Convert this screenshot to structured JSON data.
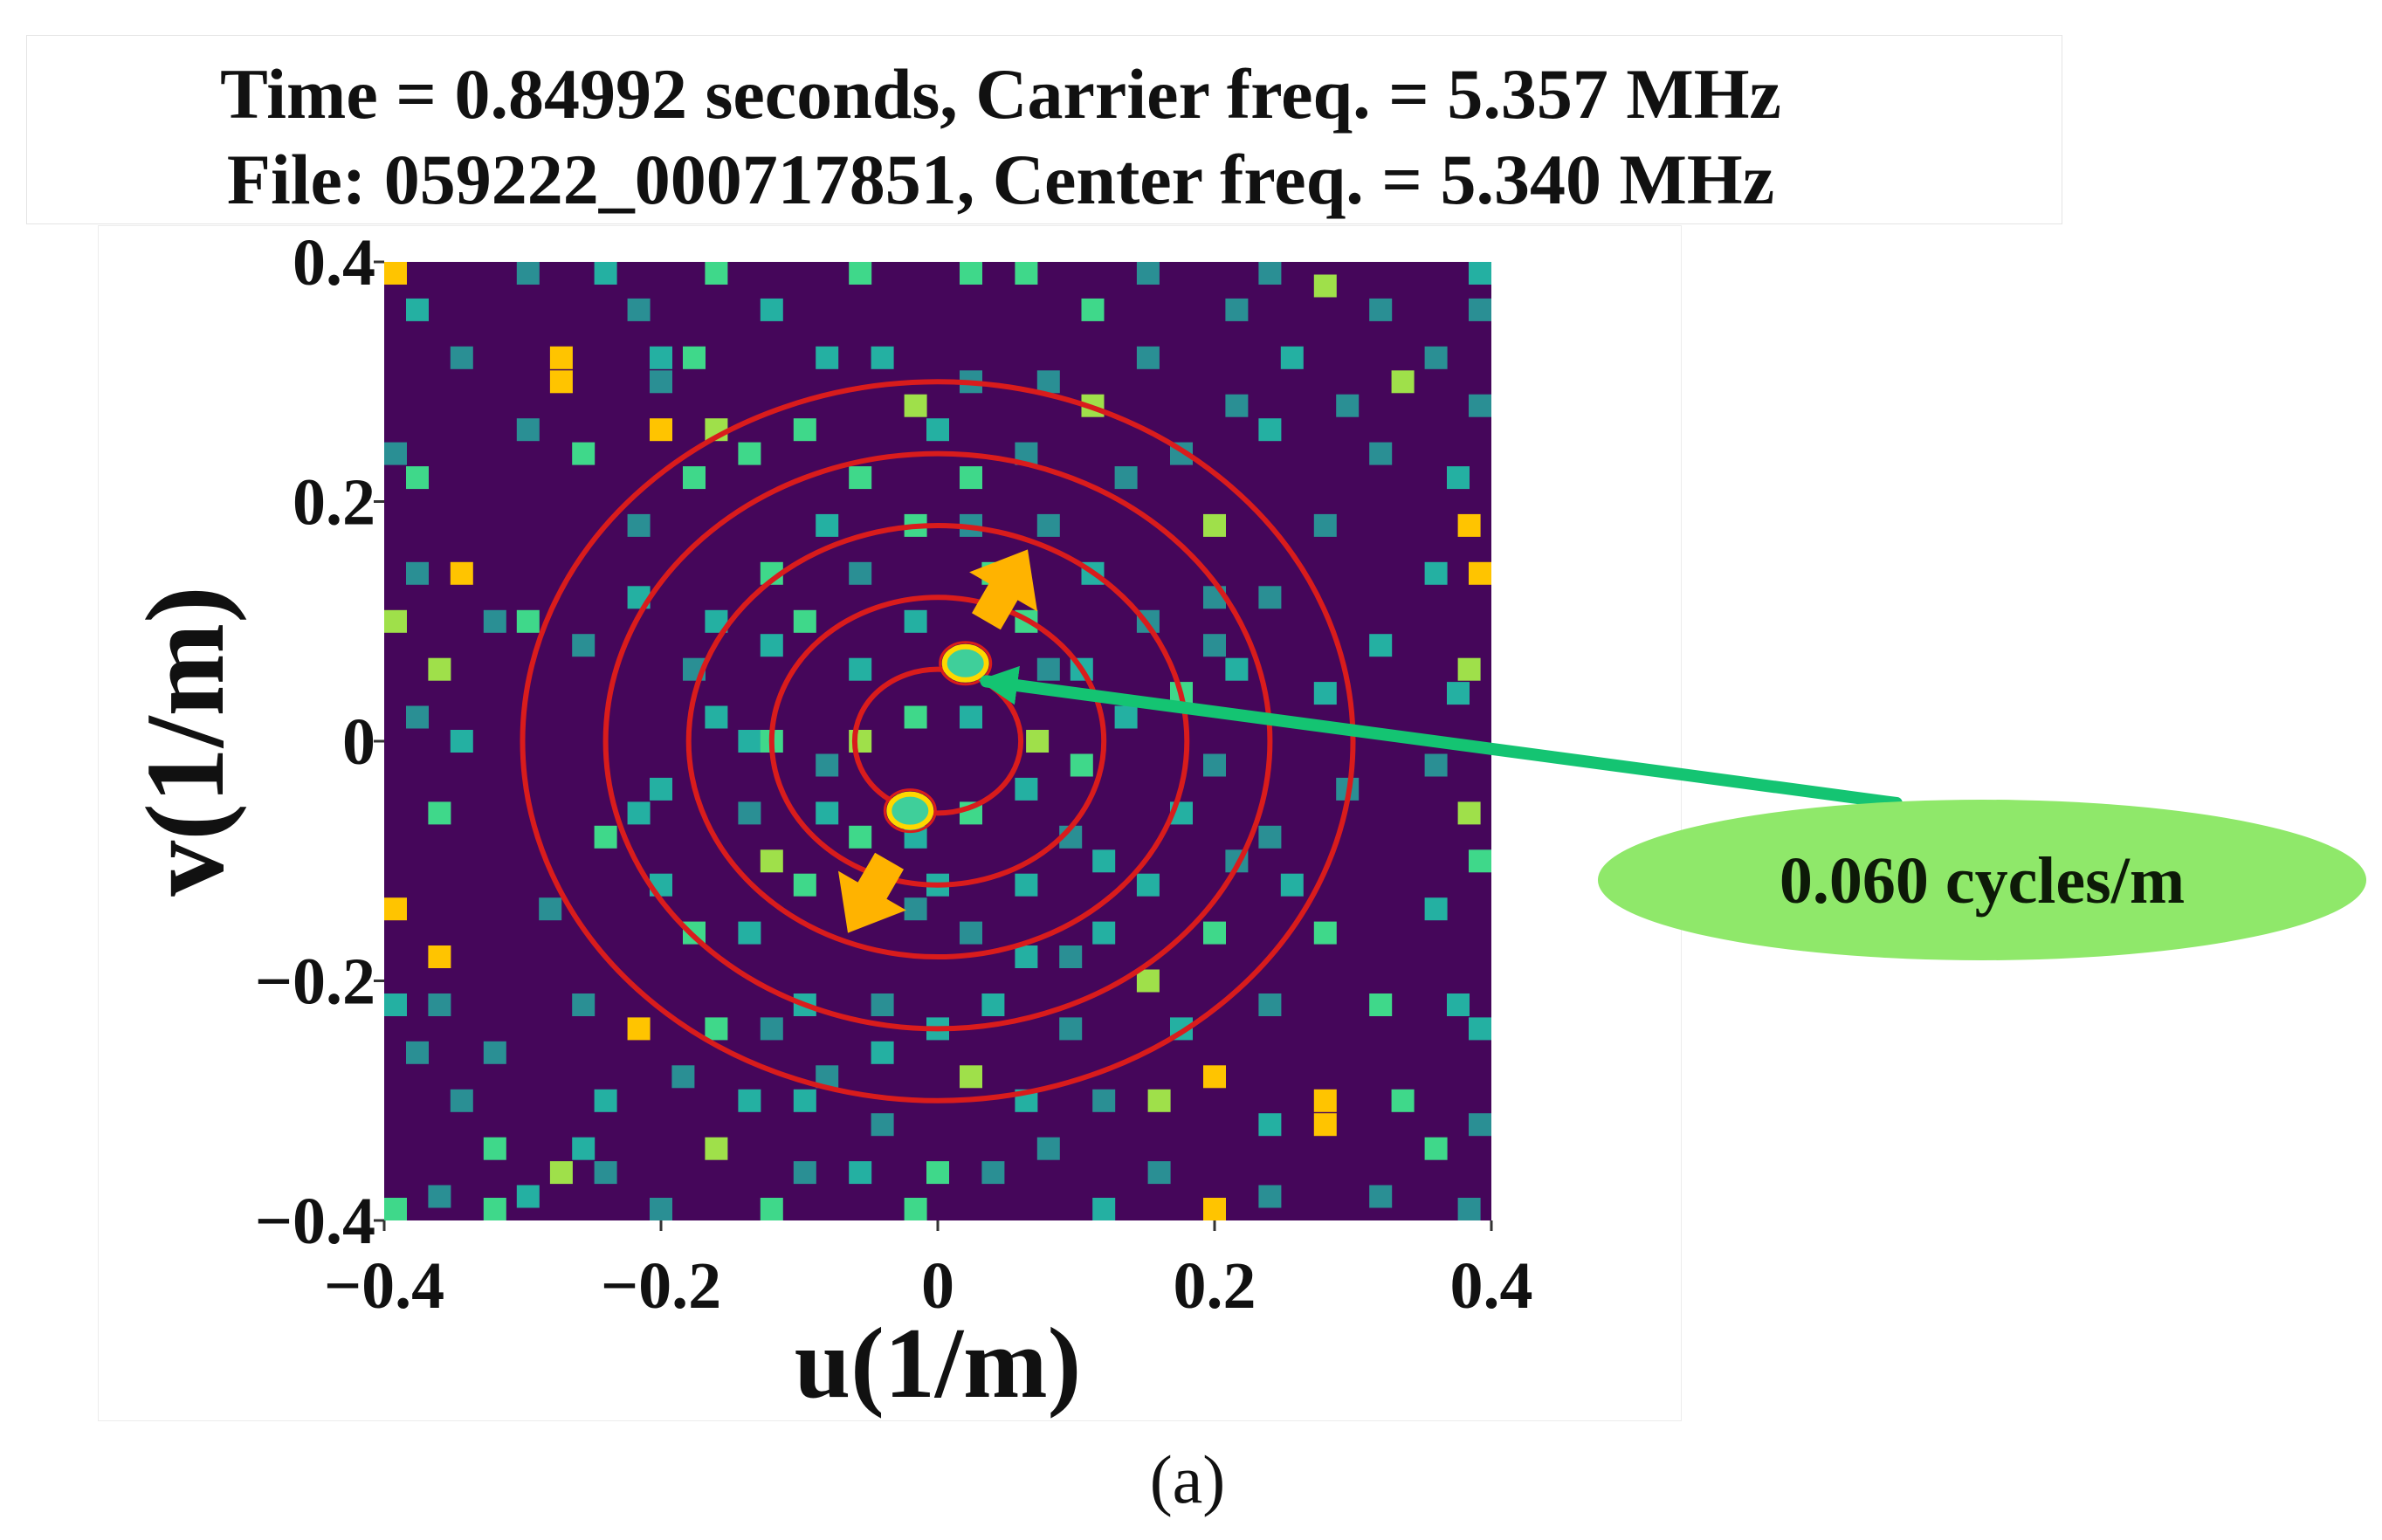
{
  "header": {
    "line1": "Time = 0.84992 seconds, Carrier freq. = 5.357 MHz",
    "line2": "File: 059222_000717851, Center freq. = 5.340 MHz"
  },
  "subfigure_label": "(a)",
  "chart_data": {
    "type": "heatmap",
    "title": "Time = 0.84992 seconds, Carrier freq. = 5.357 MHz / File: 059222_000717851, Center freq. = 5.340 MHz",
    "xlabel": "u(1/m)",
    "ylabel": "v(1/m)",
    "xlim": [
      -0.4,
      0.4
    ],
    "ylim": [
      -0.4,
      0.4
    ],
    "xticks": [
      -0.4,
      -0.2,
      0,
      0.2,
      0.4
    ],
    "yticks": [
      -0.4,
      -0.2,
      0,
      0.2,
      0.4
    ],
    "xtick_labels": [
      "−0.4",
      "−0.2",
      "0",
      "0.2",
      "0.4"
    ],
    "ytick_labels": [
      "−0.4",
      "−0.2",
      "0",
      "0.2",
      "0.4"
    ],
    "background_color": "#45065a",
    "palette": {
      "teal": "#2a8f94",
      "cyan": "#24b0a2",
      "green": "#3fd88a",
      "lime": "#9fe04a",
      "yellow": "#f0e020",
      "gold": "#ffc400"
    },
    "cells": [
      {
        "u": -0.392,
        "v": 0.4,
        "c": "gold"
      },
      {
        "u": -0.376,
        "v": 0.36,
        "c": "cyan"
      },
      {
        "u": -0.344,
        "v": 0.32,
        "c": "teal"
      },
      {
        "u": -0.4,
        "v": 0.24,
        "c": "teal"
      },
      {
        "u": -0.376,
        "v": 0.22,
        "c": "green"
      },
      {
        "u": -0.4,
        "v": 0.1,
        "c": "lime"
      },
      {
        "u": -0.376,
        "v": 0.14,
        "c": "teal"
      },
      {
        "u": -0.344,
        "v": 0.14,
        "c": "gold"
      },
      {
        "u": -0.36,
        "v": 0.06,
        "c": "lime"
      },
      {
        "u": -0.344,
        "v": 0.0,
        "c": "cyan"
      },
      {
        "u": -0.376,
        "v": 0.02,
        "c": "teal"
      },
      {
        "u": -0.32,
        "v": 0.1,
        "c": "teal"
      },
      {
        "u": -0.36,
        "v": -0.06,
        "c": "green"
      },
      {
        "u": -0.4,
        "v": -0.14,
        "c": "gold"
      },
      {
        "u": -0.36,
        "v": -0.18,
        "c": "gold"
      },
      {
        "u": -0.4,
        "v": -0.22,
        "c": "cyan"
      },
      {
        "u": -0.36,
        "v": -0.22,
        "c": "teal"
      },
      {
        "u": -0.344,
        "v": -0.3,
        "c": "teal"
      },
      {
        "u": -0.376,
        "v": -0.26,
        "c": "teal"
      },
      {
        "u": -0.32,
        "v": -0.34,
        "c": "green"
      },
      {
        "u": -0.36,
        "v": -0.38,
        "c": "teal"
      },
      {
        "u": -0.392,
        "v": -0.4,
        "c": "green"
      },
      {
        "u": -0.32,
        "v": -0.26,
        "c": "teal"
      },
      {
        "u": -0.32,
        "v": -0.4,
        "c": "green"
      },
      {
        "u": -0.296,
        "v": 0.4,
        "c": "teal"
      },
      {
        "u": -0.296,
        "v": 0.26,
        "c": "teal"
      },
      {
        "u": -0.272,
        "v": 0.32,
        "c": "gold"
      },
      {
        "u": -0.272,
        "v": 0.3,
        "c": "gold"
      },
      {
        "u": -0.256,
        "v": 0.24,
        "c": "green"
      },
      {
        "u": -0.296,
        "v": 0.1,
        "c": "green"
      },
      {
        "u": -0.256,
        "v": 0.08,
        "c": "teal"
      },
      {
        "u": -0.24,
        "v": -0.08,
        "c": "green"
      },
      {
        "u": -0.28,
        "v": -0.14,
        "c": "teal"
      },
      {
        "u": -0.256,
        "v": -0.22,
        "c": "teal"
      },
      {
        "u": -0.296,
        "v": -0.38,
        "c": "cyan"
      },
      {
        "u": -0.272,
        "v": -0.36,
        "c": "lime"
      },
      {
        "u": -0.256,
        "v": -0.34,
        "c": "cyan"
      },
      {
        "u": -0.24,
        "v": 0.4,
        "c": "cyan"
      },
      {
        "u": -0.216,
        "v": 0.36,
        "c": "teal"
      },
      {
        "u": -0.24,
        "v": -0.3,
        "c": "cyan"
      },
      {
        "u": -0.24,
        "v": -0.36,
        "c": "teal"
      },
      {
        "u": -0.2,
        "v": 0.32,
        "c": "cyan"
      },
      {
        "u": -0.2,
        "v": 0.3,
        "c": "teal"
      },
      {
        "u": -0.2,
        "v": 0.26,
        "c": "gold"
      },
      {
        "u": -0.216,
        "v": 0.18,
        "c": "teal"
      },
      {
        "u": -0.216,
        "v": 0.12,
        "c": "cyan"
      },
      {
        "u": -0.2,
        "v": -0.04,
        "c": "cyan"
      },
      {
        "u": -0.216,
        "v": -0.06,
        "c": "cyan"
      },
      {
        "u": -0.2,
        "v": -0.12,
        "c": "cyan"
      },
      {
        "u": -0.216,
        "v": -0.24,
        "c": "gold"
      },
      {
        "u": -0.184,
        "v": -0.28,
        "c": "teal"
      },
      {
        "u": -0.2,
        "v": -0.4,
        "c": "teal"
      },
      {
        "u": -0.16,
        "v": -0.24,
        "c": "green"
      },
      {
        "u": -0.176,
        "v": -0.16,
        "c": "green"
      },
      {
        "u": -0.16,
        "v": 0.4,
        "c": "green"
      },
      {
        "u": -0.176,
        "v": 0.32,
        "c": "green"
      },
      {
        "u": -0.16,
        "v": 0.26,
        "c": "lime"
      },
      {
        "u": -0.176,
        "v": 0.22,
        "c": "green"
      },
      {
        "u": -0.16,
        "v": 0.1,
        "c": "cyan"
      },
      {
        "u": -0.176,
        "v": 0.06,
        "c": "teal"
      },
      {
        "u": -0.16,
        "v": 0.02,
        "c": "cyan"
      },
      {
        "u": -0.136,
        "v": 0.0,
        "c": "cyan"
      },
      {
        "u": -0.136,
        "v": -0.06,
        "c": "teal"
      },
      {
        "u": -0.136,
        "v": -0.16,
        "c": "cyan"
      },
      {
        "u": -0.136,
        "v": -0.3,
        "c": "cyan"
      },
      {
        "u": -0.16,
        "v": -0.34,
        "c": "lime"
      },
      {
        "u": -0.12,
        "v": -0.4,
        "c": "green"
      },
      {
        "u": -0.12,
        "v": 0.36,
        "c": "cyan"
      },
      {
        "u": -0.136,
        "v": 0.24,
        "c": "green"
      },
      {
        "u": -0.12,
        "v": 0.14,
        "c": "green"
      },
      {
        "u": -0.12,
        "v": 0.08,
        "c": "cyan"
      },
      {
        "u": -0.12,
        "v": 0.0,
        "c": "green"
      },
      {
        "u": -0.12,
        "v": -0.1,
        "c": "lime"
      },
      {
        "u": -0.12,
        "v": -0.24,
        "c": "teal"
      },
      {
        "u": -0.096,
        "v": -0.22,
        "c": "cyan"
      },
      {
        "u": -0.096,
        "v": -0.36,
        "c": "teal"
      },
      {
        "u": -0.08,
        "v": 0.32,
        "c": "cyan"
      },
      {
        "u": -0.096,
        "v": 0.26,
        "c": "green"
      },
      {
        "u": -0.08,
        "v": 0.18,
        "c": "cyan"
      },
      {
        "u": -0.096,
        "v": 0.1,
        "c": "green"
      },
      {
        "u": -0.08,
        "v": -0.02,
        "c": "teal"
      },
      {
        "u": -0.08,
        "v": -0.06,
        "c": "cyan"
      },
      {
        "u": -0.096,
        "v": -0.12,
        "c": "green"
      },
      {
        "u": -0.08,
        "v": -0.28,
        "c": "teal"
      },
      {
        "u": -0.096,
        "v": -0.3,
        "c": "cyan"
      },
      {
        "u": -0.056,
        "v": 0.4,
        "c": "green"
      },
      {
        "u": -0.056,
        "v": 0.22,
        "c": "green"
      },
      {
        "u": -0.056,
        "v": 0.14,
        "c": "teal"
      },
      {
        "u": -0.056,
        "v": 0.06,
        "c": "cyan"
      },
      {
        "u": -0.056,
        "v": 0.0,
        "c": "lime"
      },
      {
        "u": -0.056,
        "v": -0.08,
        "c": "green"
      },
      {
        "u": -0.056,
        "v": -0.36,
        "c": "cyan"
      },
      {
        "u": -0.04,
        "v": 0.32,
        "c": "cyan"
      },
      {
        "u": -0.04,
        "v": -0.22,
        "c": "teal"
      },
      {
        "u": -0.04,
        "v": -0.26,
        "c": "cyan"
      },
      {
        "u": -0.04,
        "v": -0.32,
        "c": "teal"
      },
      {
        "u": -0.016,
        "v": 0.28,
        "c": "lime"
      },
      {
        "u": -0.016,
        "v": 0.18,
        "c": "green"
      },
      {
        "u": -0.016,
        "v": 0.1,
        "c": "cyan"
      },
      {
        "u": -0.016,
        "v": 0.02,
        "c": "green"
      },
      {
        "u": -0.016,
        "v": -0.08,
        "c": "cyan"
      },
      {
        "u": -0.016,
        "v": -0.14,
        "c": "teal"
      },
      {
        "u": -0.016,
        "v": -0.4,
        "c": "green"
      },
      {
        "u": 0.0,
        "v": 0.26,
        "c": "cyan"
      },
      {
        "u": 0.0,
        "v": -0.12,
        "c": "cyan"
      },
      {
        "u": 0.0,
        "v": -0.24,
        "c": "cyan"
      },
      {
        "u": 0.0,
        "v": -0.36,
        "c": "green"
      },
      {
        "u": 0.024,
        "v": 0.4,
        "c": "green"
      },
      {
        "u": 0.024,
        "v": 0.3,
        "c": "teal"
      },
      {
        "u": 0.024,
        "v": 0.22,
        "c": "green"
      },
      {
        "u": 0.024,
        "v": 0.18,
        "c": "teal"
      },
      {
        "u": 0.024,
        "v": 0.02,
        "c": "cyan"
      },
      {
        "u": 0.024,
        "v": -0.06,
        "c": "green"
      },
      {
        "u": 0.024,
        "v": -0.16,
        "c": "teal"
      },
      {
        "u": 0.024,
        "v": -0.28,
        "c": "lime"
      },
      {
        "u": 0.04,
        "v": -0.36,
        "c": "teal"
      },
      {
        "u": 0.04,
        "v": 0.14,
        "c": "green"
      },
      {
        "u": 0.04,
        "v": -0.22,
        "c": "cyan"
      },
      {
        "u": 0.064,
        "v": 0.4,
        "c": "green"
      },
      {
        "u": 0.064,
        "v": 0.24,
        "c": "teal"
      },
      {
        "u": 0.064,
        "v": 0.1,
        "c": "green"
      },
      {
        "u": 0.064,
        "v": -0.04,
        "c": "cyan"
      },
      {
        "u": 0.072,
        "v": 0.0,
        "c": "lime"
      },
      {
        "u": 0.064,
        "v": -0.12,
        "c": "cyan"
      },
      {
        "u": 0.064,
        "v": -0.18,
        "c": "cyan"
      },
      {
        "u": 0.064,
        "v": -0.3,
        "c": "cyan"
      },
      {
        "u": 0.08,
        "v": -0.34,
        "c": "teal"
      },
      {
        "u": 0.08,
        "v": 0.3,
        "c": "teal"
      },
      {
        "u": 0.08,
        "v": 0.18,
        "c": "teal"
      },
      {
        "u": 0.08,
        "v": 0.06,
        "c": "teal"
      },
      {
        "u": 0.096,
        "v": -0.08,
        "c": "teal"
      },
      {
        "u": 0.096,
        "v": -0.18,
        "c": "teal"
      },
      {
        "u": 0.096,
        "v": -0.24,
        "c": "teal"
      },
      {
        "u": 0.112,
        "v": 0.36,
        "c": "green"
      },
      {
        "u": 0.112,
        "v": 0.28,
        "c": "lime"
      },
      {
        "u": 0.112,
        "v": 0.14,
        "c": "cyan"
      },
      {
        "u": 0.104,
        "v": 0.06,
        "c": "cyan"
      },
      {
        "u": 0.104,
        "v": -0.02,
        "c": "green"
      },
      {
        "u": 0.12,
        "v": -0.1,
        "c": "cyan"
      },
      {
        "u": 0.12,
        "v": -0.16,
        "c": "cyan"
      },
      {
        "u": 0.12,
        "v": -0.3,
        "c": "teal"
      },
      {
        "u": 0.12,
        "v": -0.4,
        "c": "cyan"
      },
      {
        "u": 0.136,
        "v": 0.22,
        "c": "teal"
      },
      {
        "u": 0.136,
        "v": 0.02,
        "c": "cyan"
      },
      {
        "u": 0.152,
        "v": 0.4,
        "c": "teal"
      },
      {
        "u": 0.152,
        "v": 0.32,
        "c": "teal"
      },
      {
        "u": 0.152,
        "v": 0.1,
        "c": "teal"
      },
      {
        "u": 0.152,
        "v": -0.12,
        "c": "cyan"
      },
      {
        "u": 0.152,
        "v": -0.2,
        "c": "lime"
      },
      {
        "u": 0.16,
        "v": -0.3,
        "c": "lime"
      },
      {
        "u": 0.16,
        "v": -0.36,
        "c": "teal"
      },
      {
        "u": 0.176,
        "v": 0.24,
        "c": "teal"
      },
      {
        "u": 0.176,
        "v": 0.04,
        "c": "green"
      },
      {
        "u": 0.176,
        "v": -0.06,
        "c": "cyan"
      },
      {
        "u": 0.176,
        "v": -0.24,
        "c": "cyan"
      },
      {
        "u": 0.2,
        "v": 0.18,
        "c": "lime"
      },
      {
        "u": 0.2,
        "v": 0.12,
        "c": "teal"
      },
      {
        "u": 0.2,
        "v": 0.08,
        "c": "teal"
      },
      {
        "u": 0.2,
        "v": -0.02,
        "c": "teal"
      },
      {
        "u": 0.2,
        "v": -0.16,
        "c": "green"
      },
      {
        "u": 0.2,
        "v": -0.28,
        "c": "gold"
      },
      {
        "u": 0.2,
        "v": -0.4,
        "c": "gold"
      },
      {
        "u": 0.216,
        "v": 0.36,
        "c": "teal"
      },
      {
        "u": 0.216,
        "v": 0.28,
        "c": "teal"
      },
      {
        "u": 0.216,
        "v": 0.06,
        "c": "cyan"
      },
      {
        "u": 0.216,
        "v": -0.1,
        "c": "teal"
      },
      {
        "u": 0.24,
        "v": -0.22,
        "c": "teal"
      },
      {
        "u": 0.24,
        "v": 0.4,
        "c": "teal"
      },
      {
        "u": 0.24,
        "v": 0.26,
        "c": "cyan"
      },
      {
        "u": 0.24,
        "v": 0.12,
        "c": "teal"
      },
      {
        "u": 0.24,
        "v": -0.08,
        "c": "teal"
      },
      {
        "u": 0.24,
        "v": -0.32,
        "c": "cyan"
      },
      {
        "u": 0.24,
        "v": -0.38,
        "c": "teal"
      },
      {
        "u": 0.256,
        "v": 0.32,
        "c": "cyan"
      },
      {
        "u": 0.256,
        "v": -0.12,
        "c": "cyan"
      },
      {
        "u": 0.28,
        "v": 0.38,
        "c": "lime"
      },
      {
        "u": 0.28,
        "v": 0.18,
        "c": "teal"
      },
      {
        "u": 0.28,
        "v": 0.04,
        "c": "cyan"
      },
      {
        "u": 0.28,
        "v": -0.16,
        "c": "green"
      },
      {
        "u": 0.28,
        "v": -0.3,
        "c": "gold"
      },
      {
        "u": 0.28,
        "v": -0.32,
        "c": "gold"
      },
      {
        "u": 0.296,
        "v": 0.28,
        "c": "teal"
      },
      {
        "u": 0.296,
        "v": -0.04,
        "c": "teal"
      },
      {
        "u": 0.32,
        "v": 0.36,
        "c": "teal"
      },
      {
        "u": 0.32,
        "v": 0.24,
        "c": "teal"
      },
      {
        "u": 0.32,
        "v": 0.08,
        "c": "cyan"
      },
      {
        "u": 0.32,
        "v": -0.22,
        "c": "green"
      },
      {
        "u": 0.32,
        "v": -0.38,
        "c": "teal"
      },
      {
        "u": 0.336,
        "v": 0.3,
        "c": "lime"
      },
      {
        "u": 0.336,
        "v": -0.3,
        "c": "green"
      },
      {
        "u": 0.36,
        "v": 0.32,
        "c": "teal"
      },
      {
        "u": 0.36,
        "v": 0.14,
        "c": "cyan"
      },
      {
        "u": 0.36,
        "v": -0.02,
        "c": "teal"
      },
      {
        "u": 0.36,
        "v": -0.14,
        "c": "cyan"
      },
      {
        "u": 0.36,
        "v": -0.34,
        "c": "green"
      },
      {
        "u": 0.376,
        "v": 0.22,
        "c": "cyan"
      },
      {
        "u": 0.376,
        "v": 0.04,
        "c": "cyan"
      },
      {
        "u": 0.376,
        "v": -0.22,
        "c": "cyan"
      },
      {
        "u": 0.4,
        "v": 0.4,
        "c": "cyan"
      },
      {
        "u": 0.4,
        "v": 0.36,
        "c": "teal"
      },
      {
        "u": 0.392,
        "v": 0.28,
        "c": "teal"
      },
      {
        "u": 0.384,
        "v": 0.18,
        "c": "gold"
      },
      {
        "u": 0.4,
        "v": 0.14,
        "c": "gold"
      },
      {
        "u": 0.384,
        "v": 0.06,
        "c": "lime"
      },
      {
        "u": 0.384,
        "v": -0.06,
        "c": "lime"
      },
      {
        "u": 0.4,
        "v": -0.1,
        "c": "green"
      },
      {
        "u": 0.4,
        "v": -0.24,
        "c": "cyan"
      },
      {
        "u": 0.4,
        "v": -0.32,
        "c": "teal"
      },
      {
        "u": 0.384,
        "v": -0.4,
        "c": "teal"
      }
    ],
    "rings": {
      "center": [
        0.0,
        0.0
      ],
      "radii": [
        0.06,
        0.12,
        0.18,
        0.24,
        0.3
      ],
      "color": "#d91c1c"
    },
    "peaks": [
      {
        "u": 0.02,
        "v": 0.065
      },
      {
        "u": -0.02,
        "v": -0.058
      }
    ],
    "direction_arrows": [
      {
        "from": [
          0.035,
          0.1
        ],
        "to": [
          0.065,
          0.16
        ],
        "color": "#ffb300"
      },
      {
        "from": [
          -0.035,
          -0.1
        ],
        "to": [
          -0.065,
          -0.16
        ],
        "color": "#ffb300"
      }
    ],
    "annotation": {
      "text": "0.060 cycles/m",
      "points_to": [
        0.035,
        0.05
      ],
      "fill": "#8fe86a",
      "arrow_color": "#14c472"
    }
  }
}
